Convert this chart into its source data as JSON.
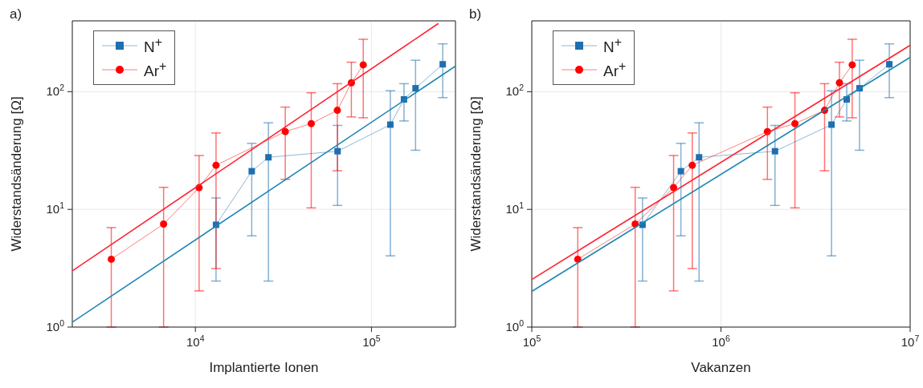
{
  "chart_data": [
    {
      "type": "line",
      "title": "a)",
      "xlabel": "Implantierte Ionen",
      "ylabel": "Widerstandsänderung [Ω]",
      "log": "xy",
      "xlim": [
        2000,
        300000
      ],
      "xticks": [
        {
          "value": 10000,
          "label": "10$^{4}$"
        },
        {
          "value": 100000,
          "label": "10$^{5}$"
        }
      ],
      "ylim": [
        1,
        400
      ],
      "yticks": [
        {
          "value": 1,
          "label": "10$^{0}$"
        },
        {
          "value": 10,
          "label": "10$^{1}$"
        },
        {
          "value": 100,
          "label": "10$^{2}$"
        }
      ],
      "grid": true,
      "legend": "top left",
      "series": [
        {
          "name": "N$^{+}$",
          "marker": "square",
          "color": "#1f6fb0",
          "x": [
            13100,
            20900,
            26000,
            64200,
            128000,
            153000,
            178000,
            254000
          ],
          "values": [
            7.4,
            21.1,
            27.7,
            31.2,
            52.5,
            86,
            107,
            171
          ],
          "errors": [
            [
              2.46,
              12.5
            ],
            [
              5.96,
              36.4
            ],
            [
              2.46,
              54.4
            ],
            [
              10.8,
              51.7
            ],
            [
              4.03,
              102
            ],
            [
              56.4,
              117
            ],
            [
              31.8,
              185
            ],
            [
              89,
              255
            ]
          ]
        },
        {
          "name": "Ar$^{+}$",
          "marker": "circle",
          "color": "#ff0000",
          "x": [
            3330,
            6600,
            10500,
            13100,
            32400,
            45500,
            64000,
            76900,
            89800
          ],
          "values": [
            3.77,
            7.5,
            15.3,
            23.7,
            45.8,
            53.6,
            69.5,
            119,
            169
          ],
          "errors": [
            [
              1,
              7.0
            ],
            [
              1,
              15.4
            ],
            [
              2.03,
              28.7
            ],
            [
              3.14,
              44.6
            ],
            [
              18,
              74
            ],
            [
              10.3,
              98
            ],
            [
              21.3,
              117
            ],
            [
              61,
              178
            ],
            [
              60,
              279
            ]
          ]
        },
        {
          "marker": "none",
          "color": "#ff2030",
          "x": [
            2000,
            240000
          ],
          "values": [
            3.0,
            380
          ]
        },
        {
          "marker": "none",
          "color": "#1f86b0",
          "x": [
            2000,
            300000
          ],
          "values": [
            1.1,
            165
          ]
        }
      ]
    },
    {
      "type": "line",
      "title": "b)",
      "tick_labels": true,
      "xlabel": "Vakanzen",
      "ylabel": "Widerstandsänderung [Ω]",
      "log": "xy",
      "xlim": [
        100000,
        10000000
      ],
      "xticks": [
        {
          "value": 100000,
          "label": "10$^{5}$"
        },
        {
          "value": 1000000,
          "label": "10$^{6}$"
        },
        {
          "value": 10000000,
          "label": "10$^{7}$"
        }
      ],
      "ylim": [
        1,
        400
      ],
      "yticks": [
        {
          "value": 1,
          "label": "10$^{0}$"
        },
        {
          "value": 10,
          "label": "10$^{1}$"
        },
        {
          "value": 100,
          "label": "10$^{2}$"
        }
      ],
      "grid": true,
      "legend": "top left",
      "series": [
        {
          "name": "N$^{+}$",
          "marker": "square",
          "color": "#1f6fb0",
          "x": [
            385000,
            614000,
            766000,
            1930000,
            3840000,
            4620000,
            5400000,
            7760000
          ],
          "values": [
            7.4,
            21.1,
            27.7,
            31.2,
            52.5,
            86,
            107,
            171
          ],
          "errors": [
            [
              2.46,
              12.5
            ],
            [
              5.96,
              36.4
            ],
            [
              2.46,
              54.4
            ],
            [
              10.8,
              51.7
            ],
            [
              4.03,
              102
            ],
            [
              56.4,
              117
            ],
            [
              31.8,
              185
            ],
            [
              89,
              255
            ]
          ]
        },
        {
          "name": "Ar$^{+}$",
          "marker": "circle",
          "color": "#ff0000",
          "x": [
            175000,
            352000,
            562000,
            705000,
            1760000,
            2460000,
            3530000,
            4230000,
            4940000
          ],
          "values": [
            3.77,
            7.5,
            15.3,
            23.7,
            45.8,
            53.6,
            69.5,
            119,
            169
          ],
          "errors": [
            [
              1,
              7.0
            ],
            [
              1,
              15.4
            ],
            [
              2.03,
              28.7
            ],
            [
              3.14,
              44.6
            ],
            [
              18,
              74
            ],
            [
              10.3,
              98
            ],
            [
              21.3,
              117
            ],
            [
              61,
              178
            ],
            [
              60,
              279
            ]
          ]
        },
        {
          "marker": "none",
          "color": "#ff2030",
          "x": [
            100000,
            10000000
          ],
          "values": [
            2.54,
            248
          ]
        },
        {
          "marker": "none",
          "color": "#1f86b0",
          "x": [
            100000,
            10000000
          ],
          "values": [
            2.01,
            196
          ]
        }
      ]
    }
  ]
}
